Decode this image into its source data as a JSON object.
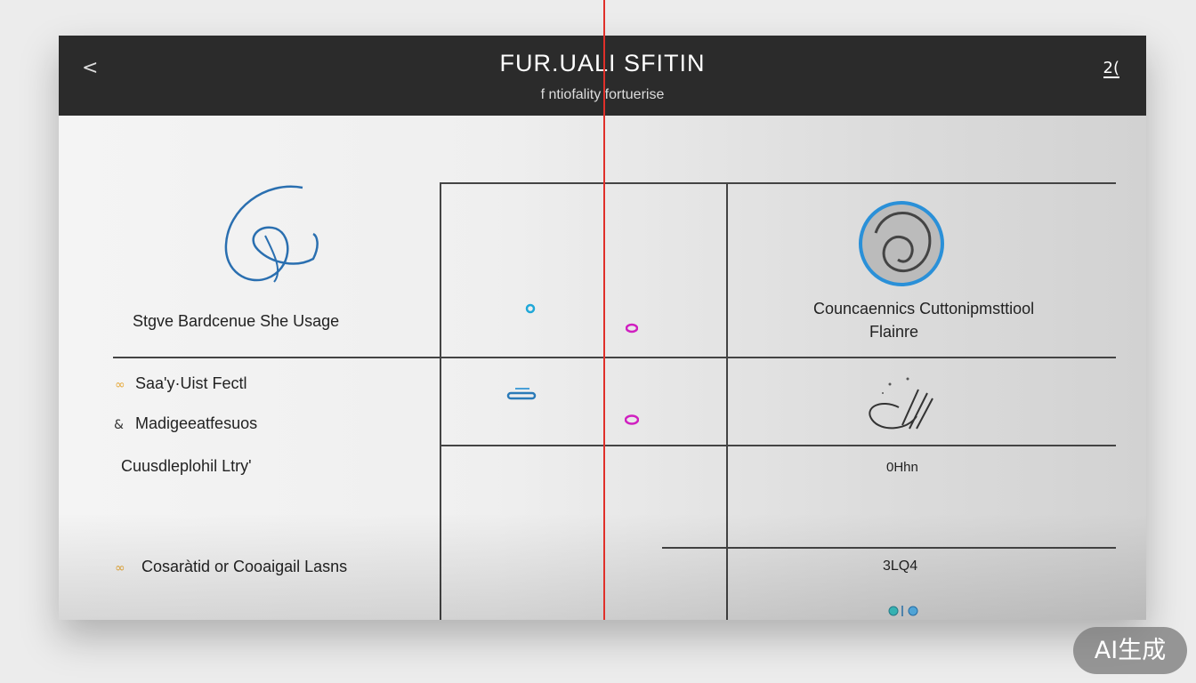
{
  "header": {
    "title": "FUR.UALI SFITIN",
    "subtitle": "f ntiofality fortuerise",
    "back_icon": "chevron-left-icon",
    "right_icon_label": "2(",
    "right_icon": "user-icon"
  },
  "left": {
    "feature_title": "Stgve Bardcenue She Usage",
    "items": [
      {
        "label": "Saa'y·Uist Fectl",
        "icon": "link-icon"
      },
      {
        "label": "Madigeeatfesuos",
        "icon": "ampersand-icon"
      },
      {
        "label": "Cuusdleplohil Ltry'",
        "icon": ""
      },
      {
        "label": "Cosaràtid or Cooaigail Lasns",
        "icon": "link-icon"
      }
    ]
  },
  "right": {
    "feature_title": "Councaennics Cuttonipmsttiool",
    "feature_subtitle": "Flainre",
    "value_1": "0Hhn",
    "value_2": "3LQ4"
  },
  "colors": {
    "header": "#2b2b2b",
    "accent_blue": "#2a7ab8",
    "magenta": "#d020c0",
    "red_line": "#e0302a",
    "orange": "#e6a93a"
  },
  "watermark": "AI生成"
}
